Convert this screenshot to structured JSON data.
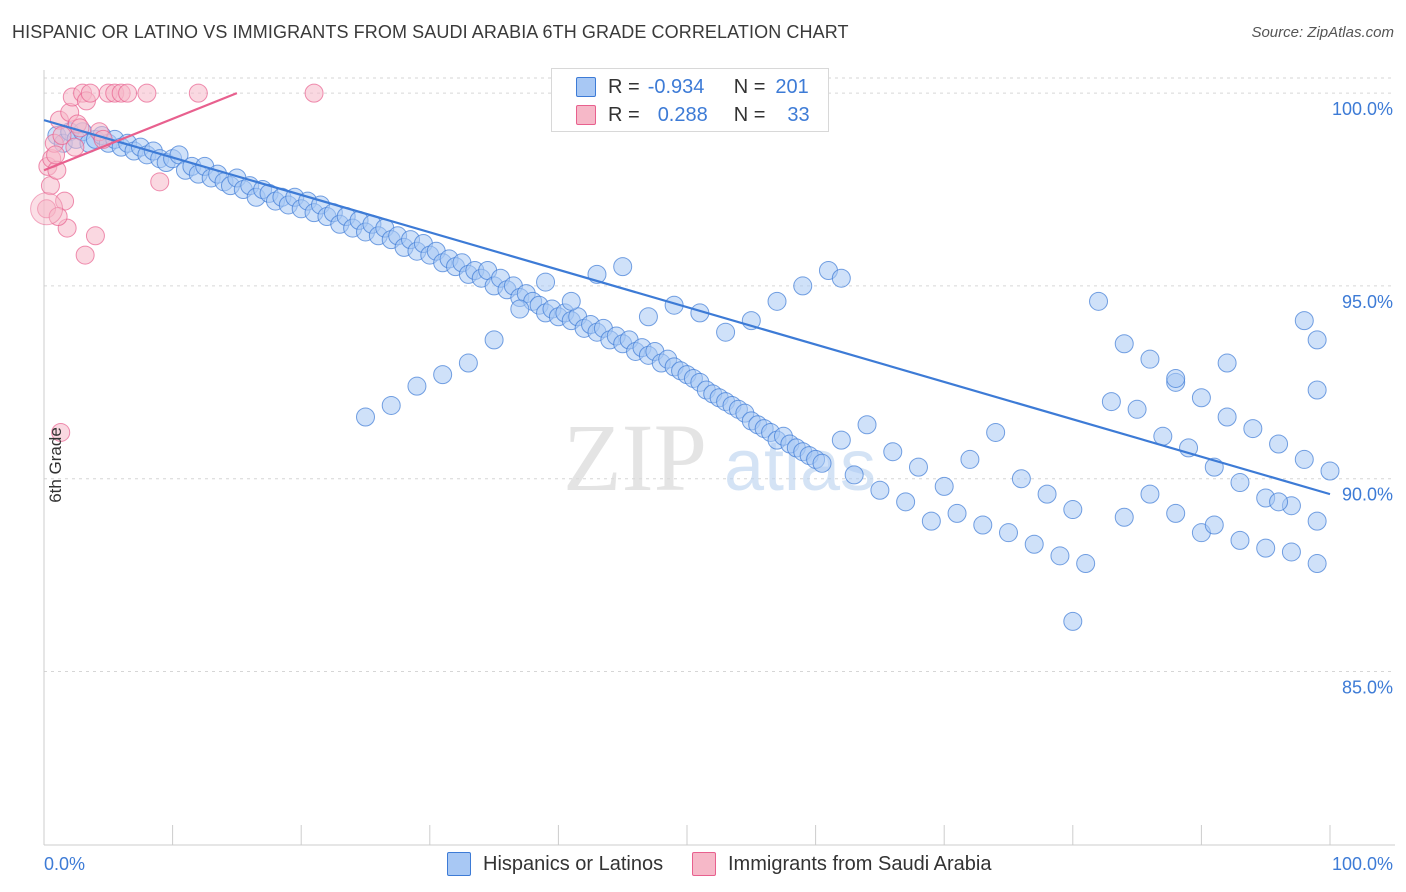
{
  "title": "HISPANIC OR LATINO VS IMMIGRANTS FROM SAUDI ARABIA 6TH GRADE CORRELATION CHART",
  "source": "Source: ZipAtlas.com",
  "watermark": {
    "zip": "ZIP",
    "atlas": "atlas"
  },
  "legend": {
    "rows": [
      {
        "r_label": "R =",
        "r_value": "-0.934",
        "n_label": "N =",
        "n_value": "201",
        "color": "#a8c8f4"
      },
      {
        "r_label": "R =",
        "r_value": "0.288",
        "n_label": "N =",
        "n_value": "33",
        "color": "#f6b8c8"
      }
    ]
  },
  "bottom_legend": [
    {
      "label": "Hispanics or Latinos",
      "color": "#a8c8f4"
    },
    {
      "label": "Immigrants from Saudi Arabia",
      "color": "#f6b8c8"
    }
  ],
  "chart_data": {
    "type": "scatter",
    "title": "HISPANIC OR LATINO VS IMMIGRANTS FROM SAUDI ARABIA 6TH GRADE CORRELATION CHART",
    "xlabel": "",
    "ylabel": "6th Grade",
    "xlim": [
      0,
      100
    ],
    "ylim": [
      80.5,
      100.6
    ],
    "x_tick_labels": [
      "0.0%",
      "100.0%"
    ],
    "y_ticks": [
      85,
      90,
      95,
      100
    ],
    "y_tick_labels": [
      "85.0%",
      "90.0%",
      "95.0%",
      "100.0%"
    ],
    "grid": true,
    "series": [
      {
        "name": "Hispanics or Latinos",
        "color": "#3d7bd6",
        "fill": "#a8c8f4",
        "trend": {
          "x": [
            0,
            100
          ],
          "y": [
            99.3,
            89.6
          ]
        },
        "points": [
          [
            1,
            98.9
          ],
          [
            1.5,
            98.7
          ],
          [
            2,
            99.0
          ],
          [
            2.5,
            98.8
          ],
          [
            3,
            99.0
          ],
          [
            3.5,
            98.7
          ],
          [
            4,
            98.8
          ],
          [
            4.5,
            98.9
          ],
          [
            5,
            98.7
          ],
          [
            5.5,
            98.8
          ],
          [
            6,
            98.6
          ],
          [
            6.5,
            98.7
          ],
          [
            7,
            98.5
          ],
          [
            7.5,
            98.6
          ],
          [
            8,
            98.4
          ],
          [
            8.5,
            98.5
          ],
          [
            9,
            98.3
          ],
          [
            9.5,
            98.2
          ],
          [
            10,
            98.3
          ],
          [
            10.5,
            98.4
          ],
          [
            11,
            98.0
          ],
          [
            11.5,
            98.1
          ],
          [
            12,
            97.9
          ],
          [
            12.5,
            98.1
          ],
          [
            13,
            97.8
          ],
          [
            13.5,
            97.9
          ],
          [
            14,
            97.7
          ],
          [
            14.5,
            97.6
          ],
          [
            15,
            97.8
          ],
          [
            15.5,
            97.5
          ],
          [
            16,
            97.6
          ],
          [
            16.5,
            97.3
          ],
          [
            17,
            97.5
          ],
          [
            17.5,
            97.4
          ],
          [
            18,
            97.2
          ],
          [
            18.5,
            97.3
          ],
          [
            19,
            97.1
          ],
          [
            19.5,
            97.3
          ],
          [
            20,
            97.0
          ],
          [
            20.5,
            97.2
          ],
          [
            21,
            96.9
          ],
          [
            21.5,
            97.1
          ],
          [
            22,
            96.8
          ],
          [
            22.5,
            96.9
          ],
          [
            23,
            96.6
          ],
          [
            23.5,
            96.8
          ],
          [
            24,
            96.5
          ],
          [
            24.5,
            96.7
          ],
          [
            25,
            96.4
          ],
          [
            25.5,
            96.6
          ],
          [
            26,
            96.3
          ],
          [
            26.5,
            96.5
          ],
          [
            27,
            96.2
          ],
          [
            27.5,
            96.3
          ],
          [
            28,
            96.0
          ],
          [
            28.5,
            96.2
          ],
          [
            29,
            95.9
          ],
          [
            29.5,
            96.1
          ],
          [
            30,
            95.8
          ],
          [
            30.5,
            95.9
          ],
          [
            31,
            95.6
          ],
          [
            31.5,
            95.7
          ],
          [
            32,
            95.5
          ],
          [
            32.5,
            95.6
          ],
          [
            33,
            95.3
          ],
          [
            33.5,
            95.4
          ],
          [
            34,
            95.2
          ],
          [
            34.5,
            95.4
          ],
          [
            35,
            95.0
          ],
          [
            35.5,
            95.2
          ],
          [
            36,
            94.9
          ],
          [
            36.5,
            95.0
          ],
          [
            37,
            94.7
          ],
          [
            37.5,
            94.8
          ],
          [
            38,
            94.6
          ],
          [
            38.5,
            94.5
          ],
          [
            39,
            94.3
          ],
          [
            39.5,
            94.4
          ],
          [
            40,
            94.2
          ],
          [
            40.5,
            94.3
          ],
          [
            41,
            94.1
          ],
          [
            41.5,
            94.2
          ],
          [
            42,
            93.9
          ],
          [
            42.5,
            94.0
          ],
          [
            43,
            93.8
          ],
          [
            43.5,
            93.9
          ],
          [
            44,
            93.6
          ],
          [
            44.5,
            93.7
          ],
          [
            45,
            93.5
          ],
          [
            45.5,
            93.6
          ],
          [
            46,
            93.3
          ],
          [
            46.5,
            93.4
          ],
          [
            47,
            93.2
          ],
          [
            47.5,
            93.3
          ],
          [
            48,
            93.0
          ],
          [
            48.5,
            93.1
          ],
          [
            49,
            92.9
          ],
          [
            49.5,
            92.8
          ],
          [
            50,
            92.7
          ],
          [
            50.5,
            92.6
          ],
          [
            51,
            92.5
          ],
          [
            51.5,
            92.3
          ],
          [
            52,
            92.2
          ],
          [
            52.5,
            92.1
          ],
          [
            53,
            92.0
          ],
          [
            53.5,
            91.9
          ],
          [
            54,
            91.8
          ],
          [
            54.5,
            91.7
          ],
          [
            55,
            91.5
          ],
          [
            55.5,
            91.4
          ],
          [
            56,
            91.3
          ],
          [
            56.5,
            91.2
          ],
          [
            57,
            91.0
          ],
          [
            57.5,
            91.1
          ],
          [
            58,
            90.9
          ],
          [
            58.5,
            90.8
          ],
          [
            59,
            90.7
          ],
          [
            59.5,
            90.6
          ],
          [
            60,
            90.5
          ],
          [
            60.5,
            90.4
          ],
          [
            61,
            95.4
          ],
          [
            62,
            95.2
          ],
          [
            59,
            95.0
          ],
          [
            57,
            94.6
          ],
          [
            55,
            94.1
          ],
          [
            53,
            93.8
          ],
          [
            51,
            94.3
          ],
          [
            49,
            94.5
          ],
          [
            47,
            94.2
          ],
          [
            45,
            95.5
          ],
          [
            43,
            95.3
          ],
          [
            41,
            94.6
          ],
          [
            39,
            95.1
          ],
          [
            37,
            94.4
          ],
          [
            35,
            93.6
          ],
          [
            33,
            93.0
          ],
          [
            31,
            92.7
          ],
          [
            29,
            92.4
          ],
          [
            27,
            91.9
          ],
          [
            25,
            91.6
          ],
          [
            62,
            91.0
          ],
          [
            64,
            91.4
          ],
          [
            66,
            90.7
          ],
          [
            68,
            90.3
          ],
          [
            70,
            89.8
          ],
          [
            72,
            90.5
          ],
          [
            74,
            91.2
          ],
          [
            76,
            90.0
          ],
          [
            78,
            89.6
          ],
          [
            80,
            89.2
          ],
          [
            63,
            90.1
          ],
          [
            65,
            89.7
          ],
          [
            67,
            89.4
          ],
          [
            69,
            88.9
          ],
          [
            71,
            89.1
          ],
          [
            73,
            88.8
          ],
          [
            75,
            88.6
          ],
          [
            77,
            88.3
          ],
          [
            79,
            88.0
          ],
          [
            81,
            87.8
          ],
          [
            82,
            94.6
          ],
          [
            84,
            93.5
          ],
          [
            86,
            93.1
          ],
          [
            88,
            92.5
          ],
          [
            90,
            92.1
          ],
          [
            92,
            91.6
          ],
          [
            94,
            91.3
          ],
          [
            96,
            90.9
          ],
          [
            98,
            90.5
          ],
          [
            100,
            90.2
          ],
          [
            83,
            92.0
          ],
          [
            85,
            91.8
          ],
          [
            87,
            91.1
          ],
          [
            89,
            90.8
          ],
          [
            91,
            90.3
          ],
          [
            93,
            89.9
          ],
          [
            95,
            89.5
          ],
          [
            97,
            89.3
          ],
          [
            99,
            88.9
          ],
          [
            84,
            89.0
          ],
          [
            80,
            86.3
          ],
          [
            90,
            88.6
          ],
          [
            93,
            88.4
          ],
          [
            95,
            88.2
          ],
          [
            97,
            88.1
          ],
          [
            99,
            87.8
          ],
          [
            86,
            89.6
          ],
          [
            88,
            89.1
          ],
          [
            91,
            88.8
          ],
          [
            96,
            89.4
          ],
          [
            98,
            94.1
          ],
          [
            99,
            93.6
          ],
          [
            99,
            92.3
          ],
          [
            88,
            92.6
          ],
          [
            92,
            93.0
          ]
        ]
      },
      {
        "name": "Immigrants from Saudi Arabia",
        "color": "#e8608e",
        "fill": "#f6b8c8",
        "trend": {
          "x": [
            0,
            15
          ],
          "y": [
            98.0,
            100.0
          ]
        },
        "points": [
          [
            0.2,
            97.0
          ],
          [
            0.3,
            98.1
          ],
          [
            0.5,
            97.6
          ],
          [
            0.6,
            98.3
          ],
          [
            0.8,
            98.7
          ],
          [
            1,
            98.0
          ],
          [
            1.2,
            99.3
          ],
          [
            1.4,
            98.9
          ],
          [
            1.6,
            97.2
          ],
          [
            1.8,
            96.5
          ],
          [
            2,
            99.5
          ],
          [
            2.2,
            99.9
          ],
          [
            2.4,
            98.6
          ],
          [
            2.6,
            99.2
          ],
          [
            3,
            100.0
          ],
          [
            3.3,
            99.8
          ],
          [
            3.6,
            100.0
          ],
          [
            4,
            96.3
          ],
          [
            4.3,
            99.0
          ],
          [
            4.6,
            98.8
          ],
          [
            5,
            100.0
          ],
          [
            5.5,
            100.0
          ],
          [
            6,
            100.0
          ],
          [
            6.5,
            100.0
          ],
          [
            8,
            100.0
          ],
          [
            9,
            97.7
          ],
          [
            12,
            100.0
          ],
          [
            21,
            100.0
          ],
          [
            1.3,
            91.2
          ],
          [
            3.2,
            95.8
          ],
          [
            1.1,
            96.8
          ],
          [
            0.9,
            98.4
          ],
          [
            2.8,
            99.1
          ]
        ]
      }
    ],
    "legend_position": "top-center"
  }
}
